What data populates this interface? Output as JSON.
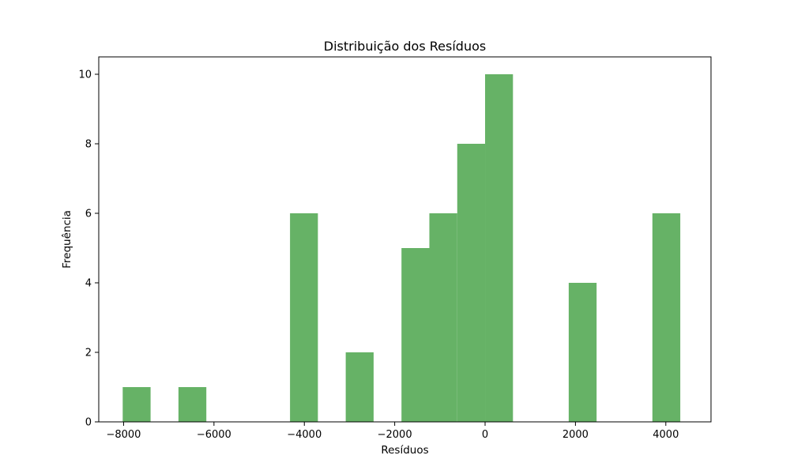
{
  "chart_data": {
    "type": "bar",
    "title": "Distribuição dos Resíduos",
    "xlabel": "Resíduos",
    "ylabel": "Frequência",
    "xlim": [
      -8550,
      5000
    ],
    "ylim": [
      0,
      10.5
    ],
    "x_ticks": [
      -8000,
      -6000,
      -4000,
      -2000,
      0,
      2000,
      4000
    ],
    "x_tick_labels": [
      "−8000",
      "−6000",
      "−4000",
      "−2000",
      "0",
      "2000",
      "4000"
    ],
    "y_ticks": [
      0,
      2,
      4,
      6,
      8,
      10
    ],
    "y_tick_labels": [
      "0",
      "2",
      "4",
      "6",
      "8",
      "10"
    ],
    "bin_width": 617,
    "bin_starts": [
      -8020,
      -6786,
      -4317,
      -3084,
      -1850,
      -1233,
      -616,
      0,
      1851,
      3703
    ],
    "counts": [
      1,
      1,
      6,
      2,
      5,
      6,
      8,
      10,
      4,
      6
    ],
    "bar_color": "#66b266",
    "grid": false,
    "legend": "none"
  }
}
